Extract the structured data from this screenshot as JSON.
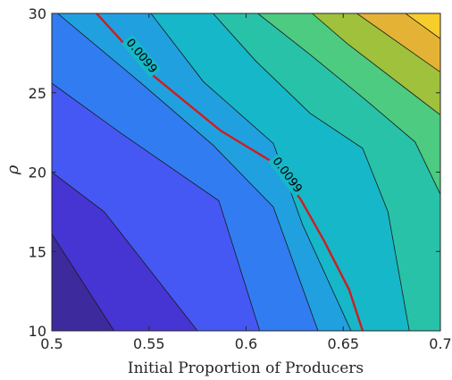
{
  "chart_data": {
    "type": "contour",
    "title": "",
    "xlabel": "Initial Proportion of Producers",
    "ylabel": "ρ",
    "xlim": [
      0.5,
      0.7
    ],
    "ylim": [
      10,
      30
    ],
    "xticks": [
      0.5,
      0.55,
      0.6,
      0.65,
      0.7
    ],
    "xtick_labels": [
      "0.5",
      "0.55",
      "0.6",
      "0.65",
      "0.7"
    ],
    "yticks": [
      10,
      15,
      20,
      25,
      30
    ],
    "ytick_labels": [
      "10",
      "15",
      "20",
      "25",
      "30"
    ],
    "grid": false,
    "colormap": "parula",
    "filled_levels": 11,
    "contour_lines": [
      [
        [
          0.5,
          16.1
        ],
        [
          0.532,
          10
        ]
      ],
      [
        [
          0.5,
          20.0
        ],
        [
          0.527,
          17.5
        ],
        [
          0.575,
          10
        ]
      ],
      [
        [
          0.5,
          25.6
        ],
        [
          0.535,
          22.5
        ],
        [
          0.586,
          18.2
        ],
        [
          0.607,
          10
        ]
      ],
      [
        [
          0.503,
          30
        ],
        [
          0.546,
          25.6
        ],
        [
          0.583,
          21.7
        ],
        [
          0.614,
          17.8
        ],
        [
          0.637,
          10
        ]
      ],
      [
        [
          0.551,
          30
        ],
        [
          0.578,
          25.7
        ],
        [
          0.614,
          21.8
        ],
        [
          0.629,
          16.7
        ],
        [
          0.654,
          10
        ]
      ],
      [
        [
          0.583,
          30
        ],
        [
          0.605,
          27.0
        ],
        [
          0.633,
          23.7
        ],
        [
          0.66,
          21.5
        ],
        [
          0.673,
          17.5
        ],
        [
          0.684,
          10
        ]
      ],
      [
        [
          0.606,
          30
        ],
        [
          0.633,
          27.4
        ],
        [
          0.661,
          24.6
        ],
        [
          0.687,
          21.9
        ],
        [
          0.7,
          18.6
        ]
      ],
      [
        [
          0.634,
          30
        ],
        [
          0.652,
          28.1
        ],
        [
          0.684,
          25.1
        ],
        [
          0.7,
          23.6
        ]
      ],
      [
        [
          0.657,
          30
        ],
        [
          0.7,
          26.3
        ]
      ],
      [
        [
          0.682,
          30
        ],
        [
          0.7,
          28.4
        ]
      ]
    ],
    "highlight_contour": {
      "level_label": "0.0099",
      "color": "#cc1f1f",
      "points": [
        [
          0.523,
          30
        ],
        [
          0.535,
          28.4
        ],
        [
          0.548,
          26.5
        ],
        [
          0.566,
          24.7
        ],
        [
          0.587,
          22.6
        ],
        [
          0.614,
          20.6
        ],
        [
          0.628,
          18.3
        ],
        [
          0.64,
          15.7
        ],
        [
          0.653,
          12.6
        ],
        [
          0.66,
          10
        ]
      ],
      "labels": [
        {
          "text": "0.0099",
          "x": 0.546,
          "y": 27.3
        },
        {
          "text": "0.0099",
          "x": 0.621,
          "y": 19.8
        }
      ]
    }
  }
}
